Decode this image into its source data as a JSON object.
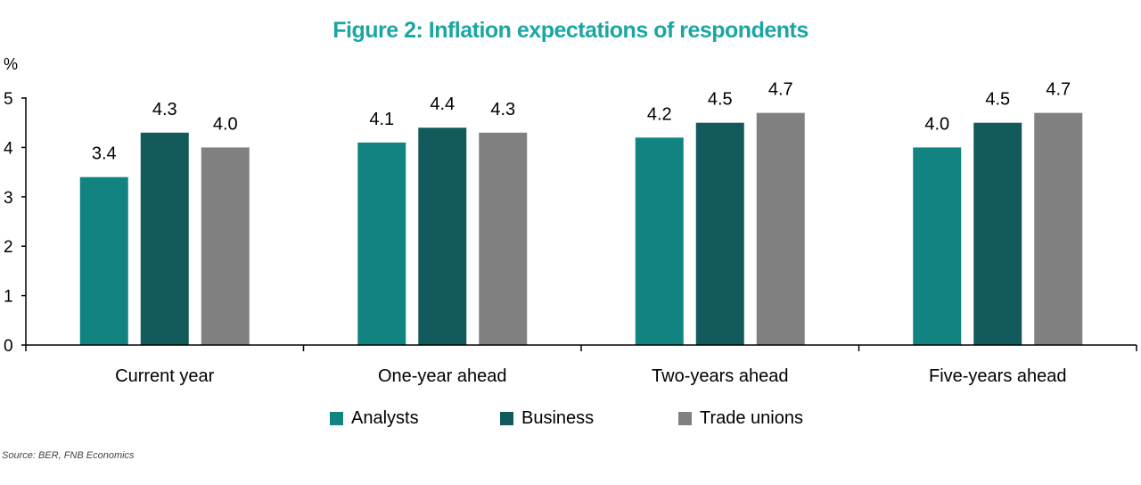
{
  "chart_data": {
    "type": "bar",
    "title": "Figure 2: Inflation expectations of respondents",
    "ylabel": "%",
    "xlabel": "",
    "ylim": [
      0,
      5
    ],
    "yticks": [
      0,
      1,
      2,
      3,
      4,
      5
    ],
    "categories": [
      "Current year",
      "One-year ahead",
      "Two-years ahead",
      "Five-years ahead"
    ],
    "series": [
      {
        "name": "Analysts",
        "color": "#118380",
        "values": [
          3.4,
          4.1,
          4.2,
          4.0
        ]
      },
      {
        "name": "Business",
        "color": "#135a5c",
        "values": [
          4.3,
          4.4,
          4.5,
          4.5
        ]
      },
      {
        "name": "Trade unions",
        "color": "#808080",
        "values": [
          4.0,
          4.3,
          4.7,
          4.7
        ]
      }
    ],
    "data_labels": true,
    "legend": "bottom",
    "grid": false
  },
  "source": "Source: BER, FNB Economics"
}
